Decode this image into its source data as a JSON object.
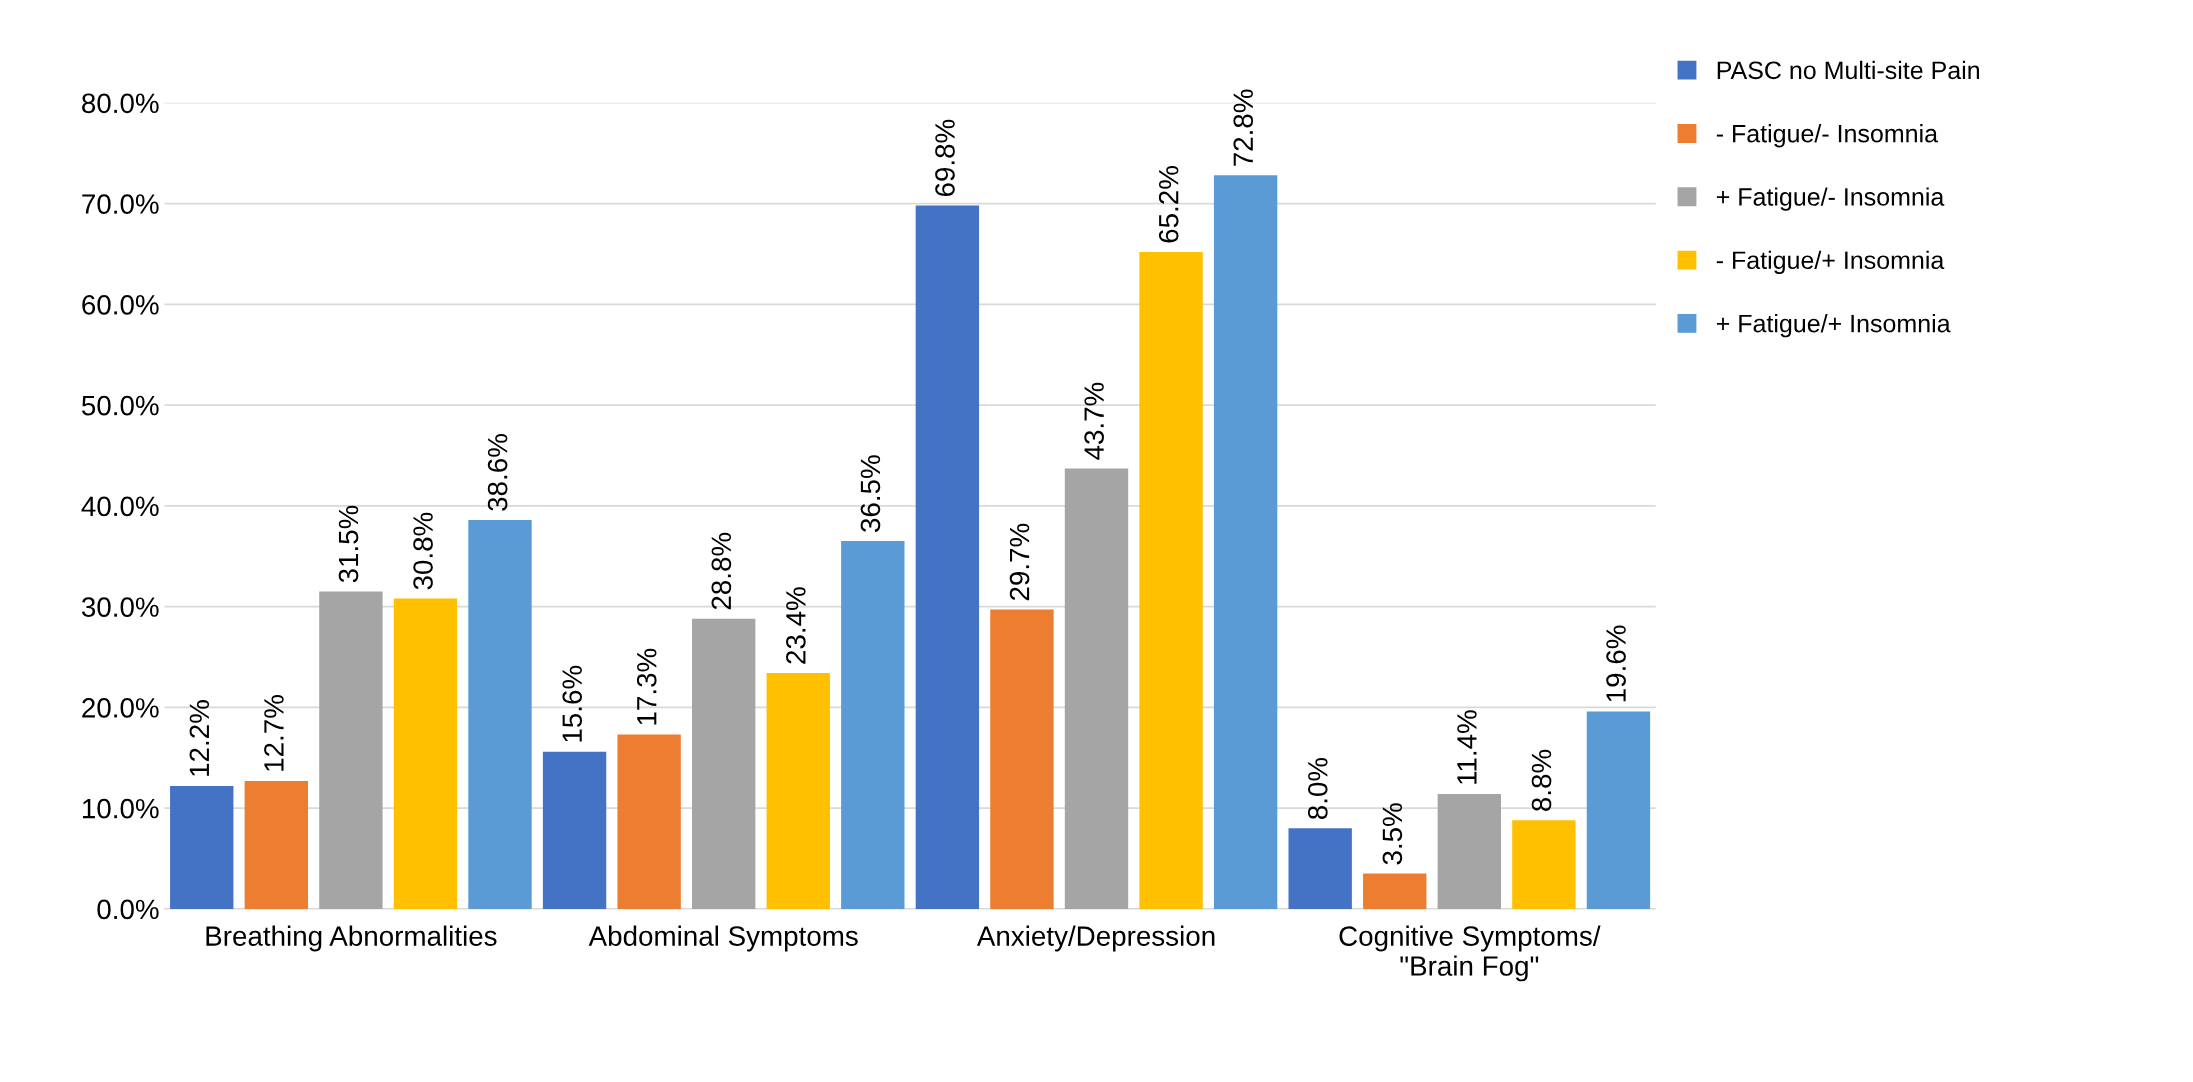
{
  "chart_data": {
    "type": "bar",
    "categories": [
      "Breathing Abnormalities",
      "Abdominal Symptoms",
      "Anxiety/Depression",
      "Cognitive Symptoms/\n\"Brain Fog\""
    ],
    "series": [
      {
        "name": "PASC no Multi-site Pain",
        "color": "#4472c4",
        "values": [
          12.2,
          15.6,
          69.8,
          8.0
        ],
        "value_labels": [
          "12.2%",
          "15.6%",
          "69.8%",
          "8.0%"
        ]
      },
      {
        "name": "- Fatigue/- Insomnia",
        "color": "#ed7d31",
        "values": [
          12.7,
          17.3,
          29.7,
          3.5
        ],
        "value_labels": [
          "12.7%",
          "17.3%",
          "29.7%",
          "3.5%"
        ]
      },
      {
        "name": "+ Fatigue/- Insomnia",
        "color": "#a5a5a5",
        "values": [
          31.5,
          28.8,
          43.7,
          11.4
        ],
        "value_labels": [
          "31.5%",
          "28.8%",
          "43.7%",
          "11.4%"
        ]
      },
      {
        "name": "- Fatigue/+ Insomnia",
        "color": "#ffc000",
        "values": [
          30.8,
          23.4,
          65.2,
          8.8
        ],
        "value_labels": [
          "30.8%",
          "23.4%",
          "65.2%",
          "8.8%"
        ]
      },
      {
        "name": "+ Fatigue/+ Insomnia",
        "color": "#5b9bd5",
        "values": [
          38.6,
          36.5,
          72.8,
          19.6
        ],
        "value_labels": [
          "38.6%",
          "36.5%",
          "72.8%",
          "19.6%"
        ]
      }
    ],
    "ylim": [
      0,
      80
    ],
    "yticks": [
      {
        "value": 0,
        "label": "0.0%"
      },
      {
        "value": 10,
        "label": "10.0%"
      },
      {
        "value": 20,
        "label": "20.0%"
      },
      {
        "value": 30,
        "label": "30.0%"
      },
      {
        "value": 40,
        "label": "40.0%"
      },
      {
        "value": 50,
        "label": "50.0%"
      },
      {
        "value": 60,
        "label": "60.0%"
      },
      {
        "value": 70,
        "label": "70.0%"
      },
      {
        "value": 80,
        "label": "80.0%"
      }
    ],
    "grid": "y",
    "legend": "top right"
  }
}
